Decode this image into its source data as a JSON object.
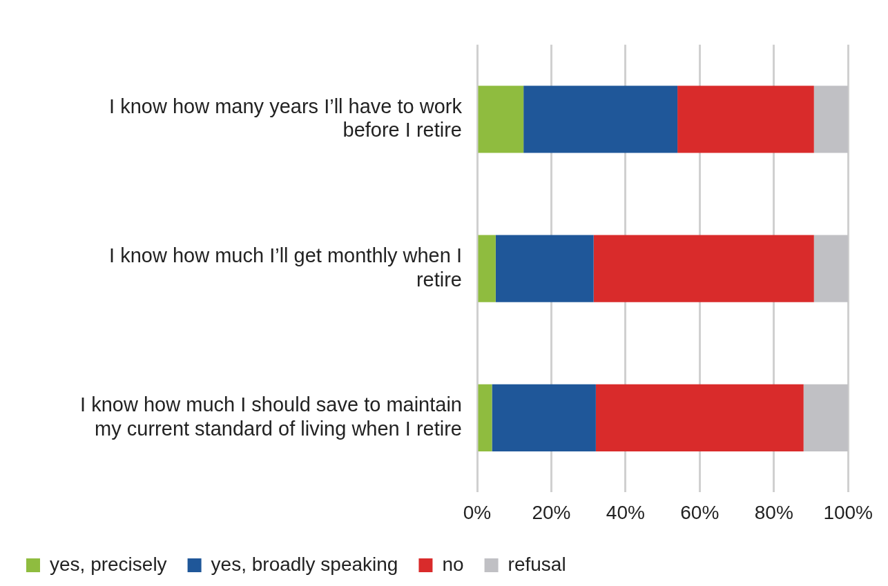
{
  "chart_data": {
    "type": "bar",
    "orientation": "horizontal",
    "stacked": true,
    "categories": [
      "I know how many years I’ll have to work before I retire",
      "I know how much I’ll get monthly when I retire",
      "I know how much I should save to maintain my current standard of living when I retire"
    ],
    "series": [
      {
        "name": "yes, precisely",
        "color": "#8fbc3f",
        "values": [
          12.5,
          5,
          4
        ]
      },
      {
        "name": "yes, broadly speaking",
        "color": "#1f5799",
        "values": [
          41.5,
          26.4,
          28
        ]
      },
      {
        "name": "no",
        "color": "#d92b2b",
        "values": [
          36.8,
          59.4,
          56
        ]
      },
      {
        "name": "refusal",
        "color": "#c0c0c4",
        "values": [
          9.2,
          9.2,
          12
        ]
      }
    ],
    "xlim": [
      0,
      100
    ],
    "xticks": [
      {
        "value": 0,
        "label": "0%"
      },
      {
        "value": 20,
        "label": "20%"
      },
      {
        "value": 40,
        "label": "40%"
      },
      {
        "value": 60,
        "label": "60%"
      },
      {
        "value": 80,
        "label": "80%"
      },
      {
        "value": 100,
        "label": "100%"
      }
    ],
    "grid": "x",
    "legend": "bottom left"
  }
}
